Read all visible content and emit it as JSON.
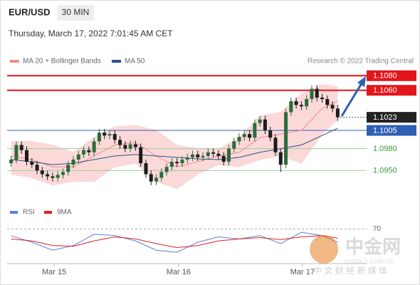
{
  "chart_data": [
    {
      "type": "candlestick",
      "title": "EUR/USD",
      "subtitle": "30 MIN",
      "timestamp": "Thursday, March 17, 2022 7:01:45 AM CET",
      "source": "Research © 2022 Trading Central",
      "up_color": "#2d6a3a",
      "down_color": "#1c1c1c",
      "open": [
        1.096,
        1.0965,
        1.0985,
        1.0978,
        1.0962,
        1.0958,
        1.095,
        1.0945,
        1.0942,
        1.094,
        1.0944,
        1.0948,
        1.0958,
        1.0965,
        1.0972,
        1.0978,
        1.0975,
        1.099,
        1.1002,
        1.0998,
        1.1,
        1.0992,
        1.0985,
        1.098,
        1.0986,
        1.0982,
        1.096,
        1.0945,
        1.0935,
        1.094,
        1.0948,
        1.0955,
        1.0962,
        1.096,
        1.0965,
        1.0968,
        1.0972,
        1.0968,
        1.097,
        1.0975,
        1.0973,
        1.097,
        1.0962,
        1.098,
        1.099,
        1.0996,
        1.1,
        1.0995,
        1.1015,
        1.102,
        1.1005,
        1.0995,
        1.0975,
        1.0958,
        1.103,
        1.1045,
        1.104,
        1.1038,
        1.1048,
        1.1062,
        1.105,
        1.1048,
        1.104,
        1.1035
      ],
      "high": [
        1.097,
        1.099,
        1.099,
        1.0983,
        1.0967,
        1.0963,
        1.0955,
        1.095,
        1.0947,
        1.0949,
        1.0953,
        1.0963,
        1.097,
        1.0977,
        1.0983,
        1.0983,
        1.0995,
        1.1007,
        1.1007,
        1.1005,
        1.1005,
        1.0997,
        1.099,
        1.0991,
        1.0991,
        1.0987,
        1.0965,
        1.095,
        1.0945,
        1.0953,
        1.096,
        1.0967,
        1.0967,
        1.097,
        1.0973,
        1.0977,
        1.0977,
        1.0975,
        1.098,
        1.098,
        1.0978,
        1.0975,
        1.0985,
        1.0995,
        1.1001,
        1.1005,
        1.1005,
        1.102,
        1.1025,
        1.1025,
        1.101,
        1.1,
        1.098,
        1.1035,
        1.105,
        1.105,
        1.1045,
        1.1053,
        1.1067,
        1.1067,
        1.1055,
        1.1053,
        1.1045,
        1.104
      ],
      "low": [
        1.0955,
        1.096,
        1.0973,
        1.0957,
        1.0953,
        1.0945,
        1.094,
        1.0937,
        1.0935,
        1.0935,
        1.0939,
        1.0943,
        1.0953,
        1.096,
        1.0967,
        1.097,
        1.097,
        1.0985,
        1.0993,
        1.0993,
        1.0987,
        1.098,
        1.0975,
        1.0975,
        1.0977,
        1.0955,
        1.094,
        1.093,
        1.093,
        1.0935,
        1.0943,
        1.095,
        1.0955,
        1.0955,
        1.096,
        1.0963,
        1.0963,
        1.0963,
        1.0965,
        1.0968,
        1.0965,
        1.0957,
        1.0957,
        1.0975,
        1.0985,
        1.0991,
        1.099,
        1.099,
        1.101,
        1.1,
        1.099,
        1.097,
        1.0948,
        1.0953,
        1.1025,
        1.1035,
        1.1033,
        1.1033,
        1.1043,
        1.1045,
        1.1043,
        1.1035,
        1.103,
        1.1018
      ],
      "close": [
        1.0965,
        1.0985,
        1.0978,
        1.0962,
        1.0958,
        1.095,
        1.0945,
        1.0942,
        1.094,
        1.0944,
        1.0948,
        1.0958,
        1.0965,
        1.0972,
        1.0978,
        1.0975,
        1.099,
        1.1002,
        1.0998,
        1.1,
        1.0992,
        1.0985,
        1.098,
        1.0986,
        1.0982,
        1.096,
        1.0945,
        1.0935,
        1.094,
        1.0948,
        1.0955,
        1.0962,
        1.096,
        1.0965,
        1.0968,
        1.0972,
        1.0968,
        1.097,
        1.0975,
        1.0973,
        1.097,
        1.0962,
        1.098,
        1.099,
        1.0996,
        1.1,
        1.0995,
        1.1015,
        1.102,
        1.1005,
        1.0995,
        1.0975,
        1.0958,
        1.103,
        1.1045,
        1.104,
        1.1038,
        1.1048,
        1.1062,
        1.105,
        1.1048,
        1.104,
        1.1035,
        1.1023
      ],
      "series": [
        {
          "name": "MA 20 + Bollinger Bands",
          "color": "#f08c8c",
          "band_color": "#fbd9d9",
          "x": [
            0,
            4,
            8,
            12,
            16,
            20,
            24,
            28,
            32,
            36,
            40,
            44,
            48,
            52,
            56,
            60,
            63
          ],
          "values": [
            1.097,
            1.0965,
            1.0955,
            1.0955,
            1.097,
            1.0985,
            1.0988,
            1.097,
            1.0955,
            1.0962,
            1.097,
            1.0975,
            1.0995,
            1.1,
            1.1005,
            1.1035,
            1.1045
          ],
          "upper": [
            1.099,
            1.099,
            1.0985,
            1.0975,
            1.0995,
            1.101,
            1.1012,
            1.1005,
            1.0985,
            1.098,
            1.098,
            1.0995,
            1.1025,
            1.103,
            1.1055,
            1.1068,
            1.1065
          ],
          "lower": [
            1.0945,
            1.094,
            1.093,
            1.0935,
            1.0935,
            1.0955,
            1.096,
            1.0935,
            1.0925,
            1.0945,
            1.0958,
            1.0955,
            1.0965,
            1.097,
            1.096,
            1.1,
            1.102
          ]
        },
        {
          "name": "MA 50",
          "color": "#2c4f8c",
          "x": [
            0,
            4,
            8,
            12,
            16,
            20,
            24,
            28,
            32,
            36,
            40,
            44,
            48,
            52,
            56,
            60,
            63
          ],
          "values": [
            1.0965,
            1.0962,
            1.0958,
            1.096,
            1.0965,
            1.097,
            1.0972,
            1.097,
            1.0968,
            1.0966,
            1.0965,
            1.0968,
            1.0975,
            1.098,
            1.0985,
            1.0998,
            1.1008
          ]
        }
      ],
      "xlim": [
        -0.5,
        63.5
      ],
      "ylim": [
        1.0922,
        1.1091
      ],
      "levels": [
        {
          "value": 1.108,
          "label": "1.1080",
          "color": "#e3161b",
          "line": "solid",
          "tag": "box"
        },
        {
          "value": 1.106,
          "label": "1.1060",
          "color": "#e3161b",
          "line": "solid",
          "tag": "box"
        },
        {
          "value": 1.1023,
          "label": "1.1023",
          "color": "#222222",
          "line": "dotted",
          "tag": "box"
        },
        {
          "value": 1.1005,
          "label": "1.1005",
          "color": "#2f5fb3",
          "line": "thin",
          "tag": "box"
        },
        {
          "value": 1.098,
          "label": "1.0980",
          "color": "#3a9a3a",
          "line": "thin",
          "tag": "text"
        },
        {
          "value": 1.095,
          "label": "1.0950",
          "color": "#3a9a3a",
          "line": "thin",
          "tag": "text"
        }
      ]
    },
    {
      "type": "line",
      "series": [
        {
          "name": "RSI",
          "color": "#5b7fd6",
          "x": [
            0,
            4,
            8,
            12,
            16,
            20,
            24,
            28,
            32,
            36,
            40,
            44,
            48,
            52,
            56,
            60,
            63
          ],
          "values": [
            60,
            50,
            38,
            45,
            62,
            60,
            52,
            38,
            35,
            50,
            58,
            55,
            60,
            48,
            65,
            60,
            50
          ]
        },
        {
          "name": "9MA",
          "color": "#e02020",
          "x": [
            0,
            4,
            8,
            12,
            16,
            20,
            24,
            28,
            32,
            36,
            40,
            44,
            48,
            52,
            56,
            60,
            63
          ],
          "values": [
            55,
            52,
            45,
            44,
            52,
            58,
            55,
            48,
            42,
            45,
            52,
            55,
            57,
            54,
            58,
            60,
            56
          ]
        }
      ],
      "xlim": [
        -0.5,
        63.5
      ],
      "ylim": [
        20,
        80
      ],
      "yticks": [
        70
      ],
      "xticks": [
        {
          "value": 8.3,
          "label": "Mar 15"
        },
        {
          "value": 32.3,
          "label": "Mar 16"
        },
        {
          "value": 56.2,
          "label": "Mar 17"
        }
      ]
    }
  ],
  "watermark": {
    "brand": "中金网",
    "domain": "CNGOLD.COM.CN",
    "tagline": "中 文 财 经 新 媒 体"
  }
}
